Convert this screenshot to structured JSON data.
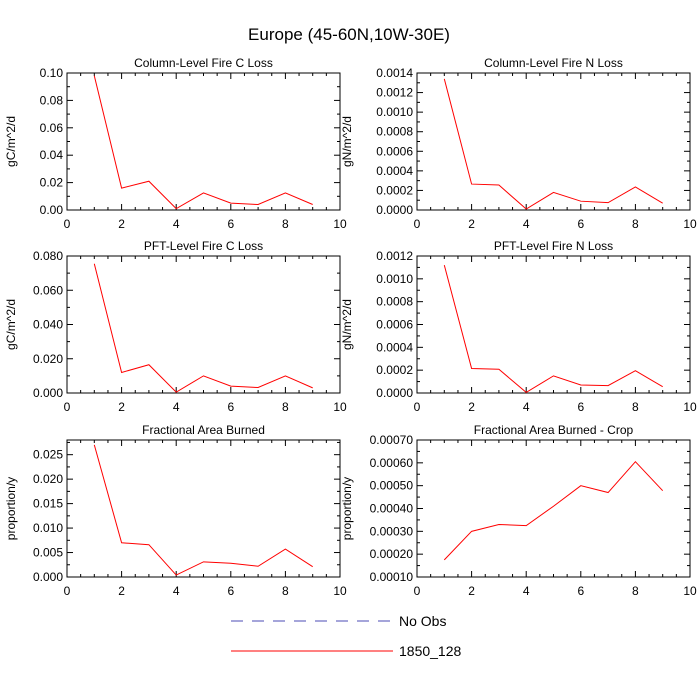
{
  "figure": {
    "title": "Europe (45-60N,10W-30E)"
  },
  "legend": {
    "entries": [
      {
        "label": "No Obs",
        "color": "#4b4bb4",
        "dashed": true
      },
      {
        "label": "1850_128",
        "color": "#ff0000",
        "dashed": false
      }
    ]
  },
  "chart_data": [
    {
      "type": "line",
      "title": "Column-Level Fire C Loss",
      "ylabel": "gC/m^2/d",
      "xlabel": "",
      "xlim": [
        0,
        10
      ],
      "ylim": [
        0,
        0.1
      ],
      "xticks": [
        "0",
        "2",
        "4",
        "6",
        "8",
        "10"
      ],
      "yticks": [
        "0.00",
        "0.02",
        "0.04",
        "0.06",
        "0.08",
        "0.10"
      ],
      "x": [
        1,
        2,
        3,
        4,
        5,
        6,
        7,
        8,
        9
      ],
      "series": [
        {
          "name": "1850_128",
          "color": "#ff0000",
          "values": [
            0.098,
            0.016,
            0.021,
            0.001,
            0.0125,
            0.005,
            0.004,
            0.0125,
            0.004
          ]
        }
      ]
    },
    {
      "type": "line",
      "title": "Column-Level Fire N Loss",
      "ylabel": "gN/m^2/d",
      "xlabel": "",
      "xlim": [
        0,
        10
      ],
      "ylim": [
        0,
        0.0014
      ],
      "xticks": [
        "0",
        "2",
        "4",
        "6",
        "8",
        "10"
      ],
      "yticks": [
        "0.0000",
        "0.0002",
        "0.0004",
        "0.0006",
        "0.0008",
        "0.0010",
        "0.0012",
        "0.0014"
      ],
      "x": [
        1,
        2,
        3,
        4,
        5,
        6,
        7,
        8,
        9
      ],
      "series": [
        {
          "name": "1850_128",
          "color": "#ff0000",
          "values": [
            0.00134,
            0.000265,
            0.000255,
            1e-05,
            0.00018,
            9e-05,
            7.5e-05,
            0.000235,
            7e-05
          ]
        }
      ]
    },
    {
      "type": "line",
      "title": "PFT-Level Fire C Loss",
      "ylabel": "gC/m^2/d",
      "xlabel": "",
      "xlim": [
        0,
        10
      ],
      "ylim": [
        0,
        0.08
      ],
      "xticks": [
        "0",
        "2",
        "4",
        "6",
        "8",
        "10"
      ],
      "yticks": [
        "0.000",
        "0.020",
        "0.040",
        "0.060",
        "0.080"
      ],
      "x": [
        1,
        2,
        3,
        4,
        5,
        6,
        7,
        8,
        9
      ],
      "series": [
        {
          "name": "1850_128",
          "color": "#ff0000",
          "values": [
            0.0755,
            0.012,
            0.0165,
            0.0005,
            0.01,
            0.004,
            0.0032,
            0.01,
            0.003
          ]
        }
      ]
    },
    {
      "type": "line",
      "title": "PFT-Level Fire N Loss",
      "ylabel": "gN/m^2/d",
      "xlabel": "",
      "xlim": [
        0,
        10
      ],
      "ylim": [
        0,
        0.0012
      ],
      "xticks": [
        "0",
        "2",
        "4",
        "6",
        "8",
        "10"
      ],
      "yticks": [
        "0.0000",
        "0.0002",
        "0.0004",
        "0.0006",
        "0.0008",
        "0.0010",
        "0.0012"
      ],
      "x": [
        1,
        2,
        3,
        4,
        5,
        6,
        7,
        8,
        9
      ],
      "series": [
        {
          "name": "1850_128",
          "color": "#ff0000",
          "values": [
            0.00112,
            0.000215,
            0.000208,
            5e-06,
            0.00015,
            7e-05,
            6.5e-05,
            0.000195,
            5.5e-05
          ]
        }
      ]
    },
    {
      "type": "line",
      "title": "Fractional Area Burned",
      "ylabel": "proportion/y",
      "xlabel": "",
      "xlim": [
        0,
        10
      ],
      "ylim": [
        0,
        0.028
      ],
      "xticks": [
        "0",
        "2",
        "4",
        "6",
        "8",
        "10"
      ],
      "yticks": [
        "0.000",
        "0.005",
        "0.010",
        "0.015",
        "0.020",
        "0.025"
      ],
      "x": [
        1,
        2,
        3,
        4,
        5,
        6,
        7,
        8,
        9
      ],
      "series": [
        {
          "name": "1850_128",
          "color": "#ff0000",
          "values": [
            0.027,
            0.007,
            0.0066,
            0.0004,
            0.0031,
            0.0028,
            0.0022,
            0.0057,
            0.0021
          ]
        }
      ]
    },
    {
      "type": "line",
      "title": "Fractional Area Burned - Crop",
      "ylabel": "proportion/y",
      "xlabel": "",
      "xlim": [
        0,
        10
      ],
      "ylim": [
        0.0001,
        0.0007
      ],
      "xticks": [
        "0",
        "2",
        "4",
        "6",
        "8",
        "10"
      ],
      "yticks": [
        "0.00010",
        "0.00020",
        "0.00030",
        "0.00040",
        "0.00050",
        "0.00060",
        "0.00070"
      ],
      "x": [
        1,
        2,
        3,
        4,
        5,
        6,
        7,
        8,
        9
      ],
      "series": [
        {
          "name": "1850_128",
          "color": "#ff0000",
          "values": [
            0.000175,
            0.0003,
            0.00033,
            0.000325,
            0.00041,
            0.0005,
            0.00047,
            0.000605,
            0.000478
          ]
        }
      ]
    }
  ]
}
